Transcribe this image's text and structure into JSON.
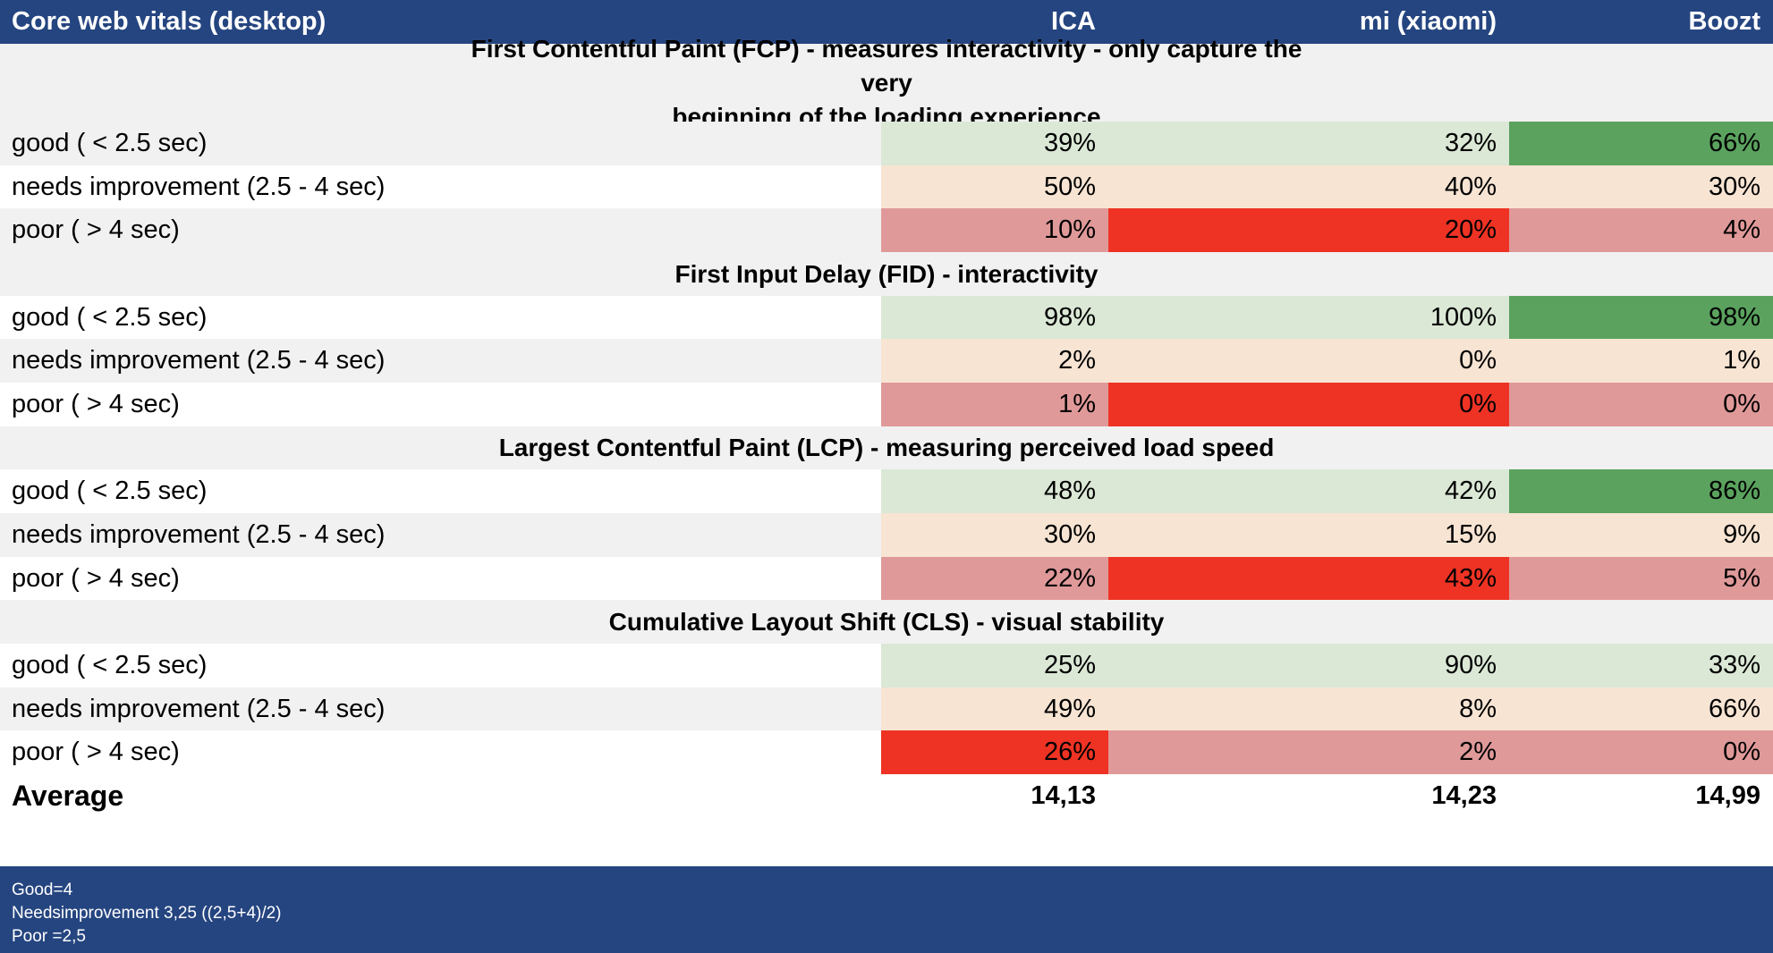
{
  "header": {
    "title": "Core web vitals (desktop)",
    "col1": "ICA",
    "col2": "mi (xiaomi)",
    "col3": "Boozt"
  },
  "colors": {
    "header_bg": "#254580",
    "light_green": "#dbe8d6",
    "dark_green": "#5aa25e",
    "peach": "#f7e4d3",
    "pink": "#e09999",
    "red": "#ee3324"
  },
  "sections": [
    {
      "title_lines": [
        "First Contentful Paint (FCP) - measures interactivity - only capture the very",
        "beginning of the loading experience"
      ],
      "rows": [
        {
          "label": "good ( < 2.5 sec)",
          "values": [
            "39%",
            "32%",
            "66%"
          ]
        },
        {
          "label": "needs improvement (2.5 - 4 sec)",
          "values": [
            "50%",
            "40%",
            "30%"
          ]
        },
        {
          "label": "poor ( > 4 sec)",
          "values": [
            "10%",
            "20%",
            "4%"
          ]
        }
      ]
    },
    {
      "title_lines": [
        "First Input Delay (FID) - interactivity"
      ],
      "rows": [
        {
          "label": "good ( < 2.5 sec)",
          "values": [
            "98%",
            "100%",
            "98%"
          ]
        },
        {
          "label": "needs improvement (2.5 - 4 sec)",
          "values": [
            "2%",
            "0%",
            "1%"
          ]
        },
        {
          "label": "poor ( > 4 sec)",
          "values": [
            "1%",
            "0%",
            "0%"
          ]
        }
      ]
    },
    {
      "title_lines": [
        "Largest Contentful Paint (LCP) - measuring perceived load speed"
      ],
      "rows": [
        {
          "label": "good ( < 2.5 sec)",
          "values": [
            "48%",
            "42%",
            "86%"
          ]
        },
        {
          "label": "needs improvement (2.5 - 4 sec)",
          "values": [
            "30%",
            "15%",
            "9%"
          ]
        },
        {
          "label": "poor ( > 4 sec)",
          "values": [
            "22%",
            "43%",
            "5%"
          ]
        }
      ]
    },
    {
      "title_lines": [
        "Cumulative Layout Shift (CLS) - visual stability"
      ],
      "rows": [
        {
          "label": "good ( < 2.5 sec)",
          "values": [
            "25%",
            "90%",
            "33%"
          ]
        },
        {
          "label": "needs improvement (2.5 - 4 sec)",
          "values": [
            "49%",
            "8%",
            "66%"
          ]
        },
        {
          "label": "poor ( > 4 sec)",
          "values": [
            "26%",
            "2%",
            "0%"
          ]
        }
      ]
    }
  ],
  "average": {
    "label": "Average",
    "values": [
      "14,13",
      "14,23",
      "14,99"
    ]
  },
  "footer": {
    "lines": [
      "Good=4",
      "Needsimprovement 3,25 ((2,5+4)/2)",
      "Poor =2,5"
    ]
  }
}
